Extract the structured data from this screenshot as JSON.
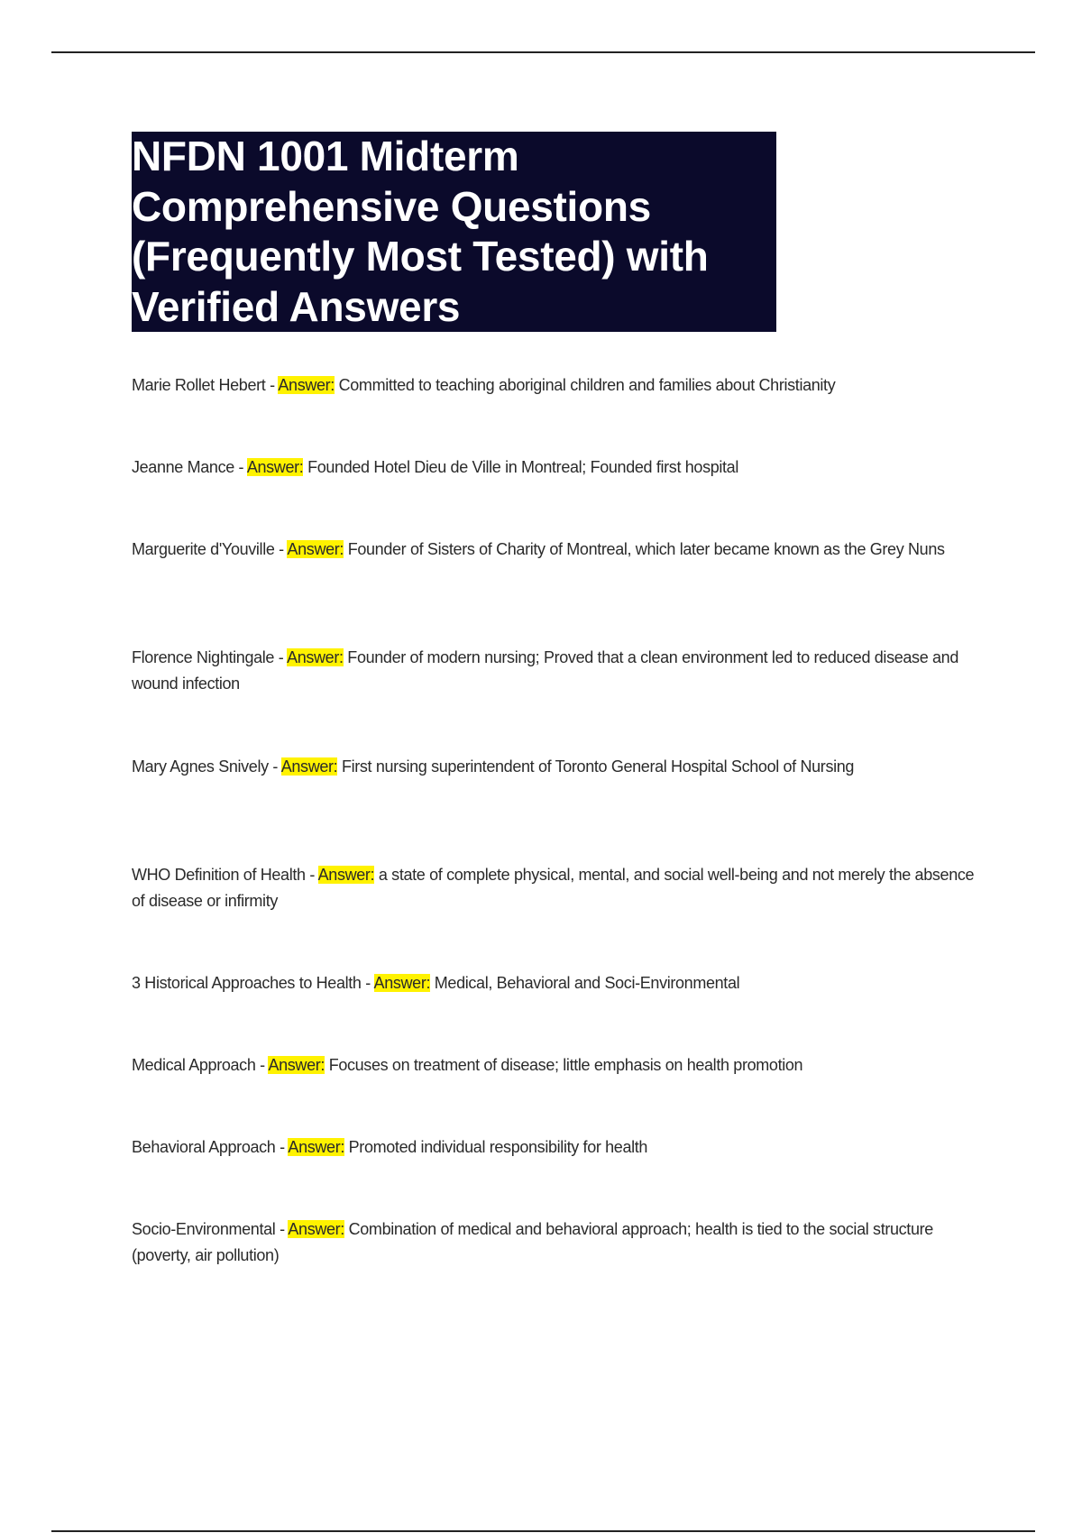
{
  "title": "NFDN 1001 Midterm Comprehensive Questions (Frequently Most Tested) with Verified Answers",
  "answer_label": "Answer:",
  "highlight_color": "#fff200",
  "items": [
    {
      "term": "Marie Rollet Hebert",
      "answer": "Committed to teaching aboriginal children and families about Christianity"
    },
    {
      "term": "Jeanne Mance",
      "answer": "Founded Hotel Dieu de Ville in Montreal; Founded first hospital"
    },
    {
      "term": "Marguerite d'Youville",
      "answer": "Founder of Sisters of Charity of Montreal, which later became known as the Grey Nuns"
    },
    {
      "term": "Florence Nightingale",
      "answer": "Founder of modern nursing; Proved that a clean environment led to reduced disease and wound infection"
    },
    {
      "term": "Mary Agnes Snively",
      "answer": "First nursing superintendent of Toronto General Hospital School of Nursing"
    },
    {
      "term": "WHO Definition of Health",
      "answer": "a state of complete physical, mental, and social well-being and not merely the absence of disease or infirmity"
    },
    {
      "term": "3 Historical Approaches to Health",
      "answer": "Medical, Behavioral and Soci-Environmental"
    },
    {
      "term": "Medical Approach",
      "answer": "Focuses on treatment of disease; little emphasis on health promotion"
    },
    {
      "term": "Behavioral Approach",
      "answer": "Promoted individual responsibility for health"
    },
    {
      "term": "Socio-Environmental",
      "answer": "Combination of medical and behavioral approach; health is tied to the social structure (poverty, air pollution)"
    }
  ]
}
